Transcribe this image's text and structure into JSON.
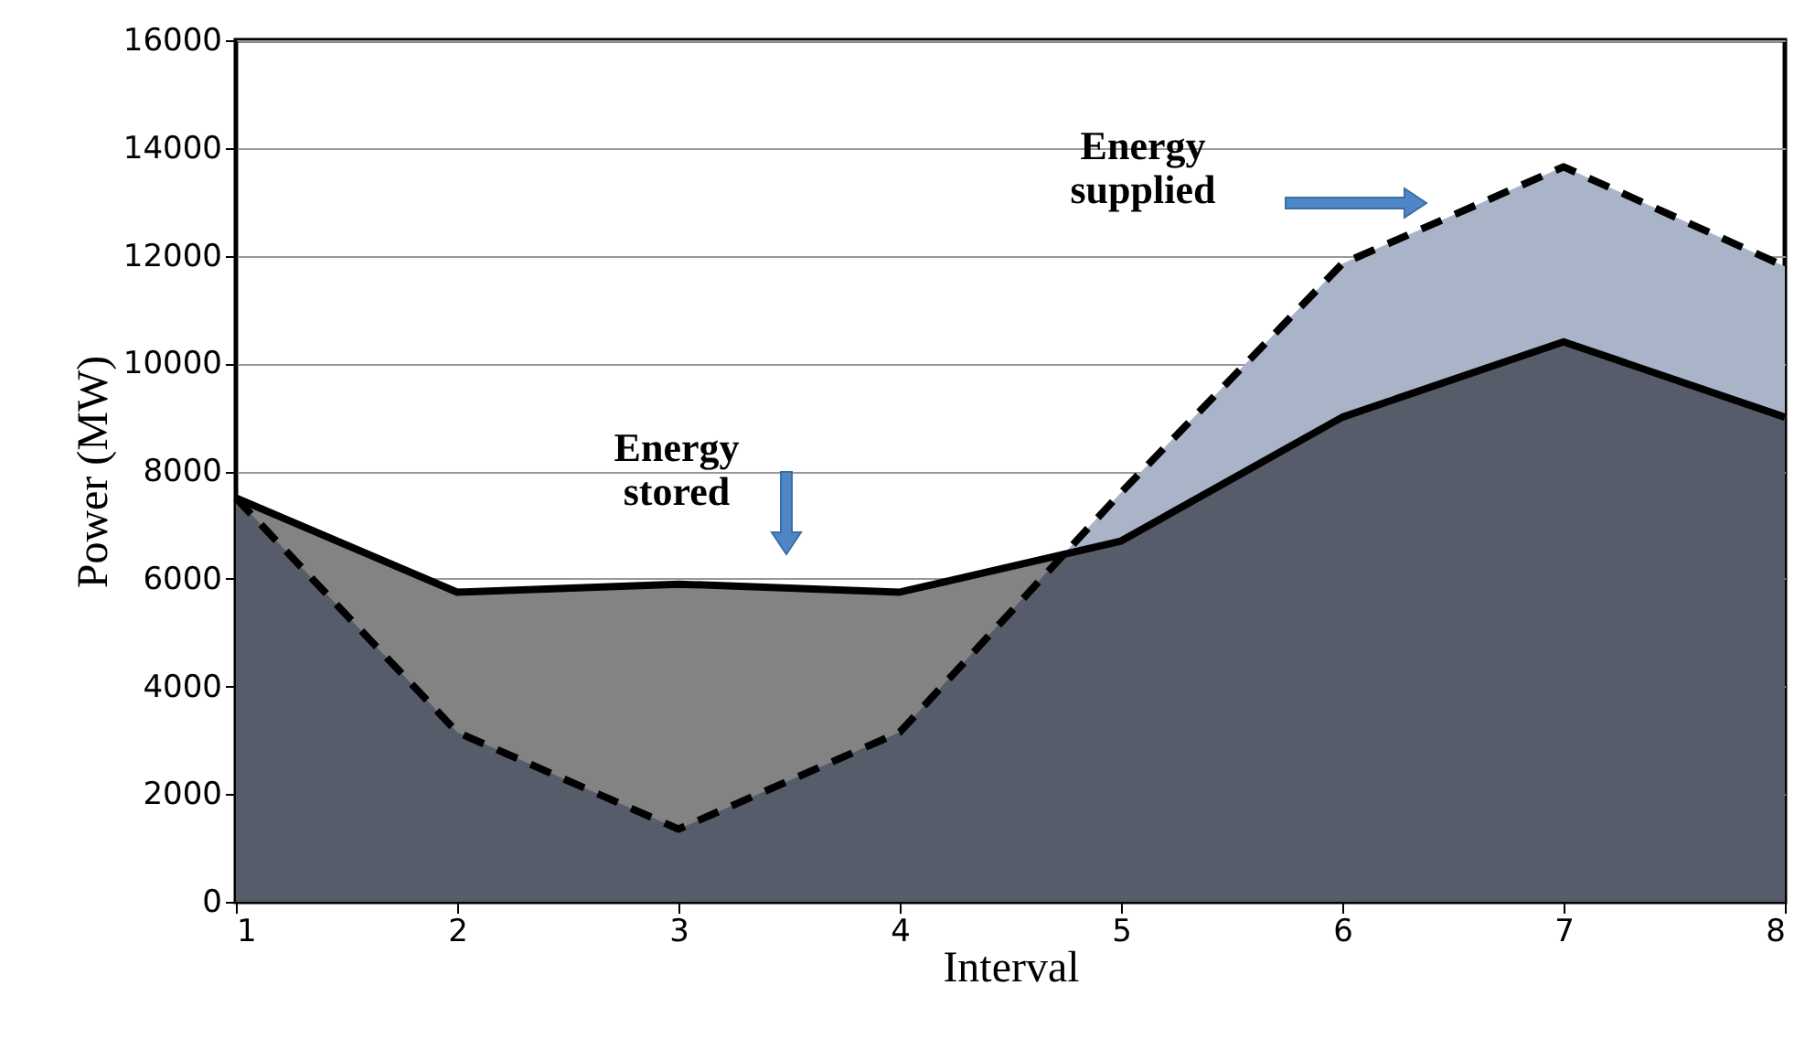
{
  "chart_data": {
    "type": "area",
    "xlabel": "Interval",
    "ylabel": "Power (MW)",
    "x": [
      1,
      2,
      3,
      4,
      5,
      6,
      7,
      8
    ],
    "series": [
      {
        "color": "#a9b4c8",
        "x": [
          4.74,
          5,
          6,
          7,
          8
        ],
        "values": [
          6460,
          7600,
          11850,
          13650,
          11800
        ]
      },
      {
        "color": "#838383",
        "x": [
          1,
          2,
          3,
          4,
          4.74
        ],
        "values": [
          7500,
          5750,
          5900,
          5750,
          6460
        ]
      },
      {
        "color": "#565c69",
        "x": [
          1,
          2,
          3,
          4,
          4.74,
          5,
          6,
          7,
          8
        ],
        "values": [
          7500,
          3150,
          1350,
          3150,
          6460,
          6700,
          9000,
          10400,
          9000
        ]
      },
      {
        "type": "line",
        "color": "#000000",
        "line_style": "solid",
        "values": [
          7500,
          5750,
          5900,
          5750,
          6700,
          9000,
          10400,
          9000
        ]
      },
      {
        "type": "line",
        "color": "#000000",
        "line_style": "dashed",
        "values": [
          7500,
          3150,
          1350,
          3150,
          7600,
          11850,
          13650,
          11800
        ]
      }
    ],
    "xlim": [
      1,
      8
    ],
    "xticks": [
      1,
      2,
      3,
      4,
      5,
      6,
      7,
      8
    ],
    "ylim": [
      0,
      16000
    ],
    "yticks": [
      0,
      2000,
      4000,
      6000,
      8000,
      10000,
      12000,
      14000,
      16000
    ],
    "grid": "y",
    "annotations": [
      "Energy stored",
      "Energy supplied"
    ]
  }
}
